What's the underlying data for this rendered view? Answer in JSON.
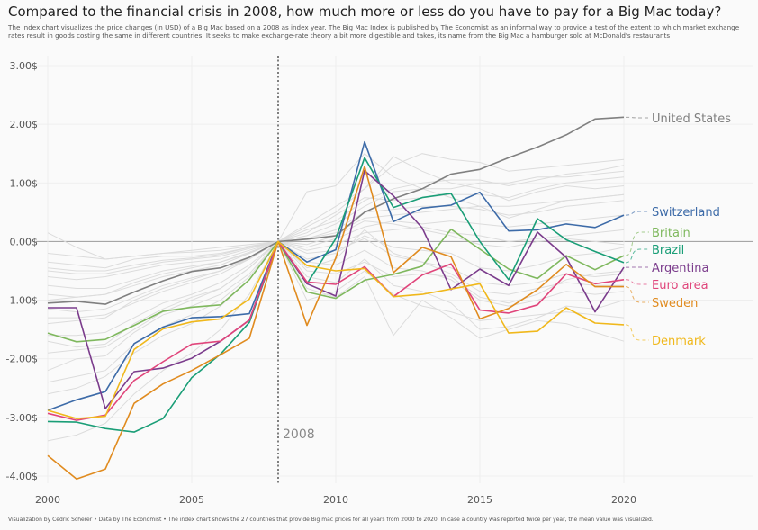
{
  "chart_data": {
    "type": "line",
    "title": "Compared to the financial crisis in 2008, how much more or less do you have to pay for a Big Mac today?",
    "subtitle": "The index chart visualizes the price changes (in USD) of a Big Mac based on a 2008 as index year. The Big Mac Index is published by The Economist as an informal way to provide a test of the extent to which market exchange rates result in goods costing the same in different countries. It seeks to make exchange-rate theory a bit more digestible and takes, its name from the Big Mac a hamburger sold at McDonald's restaurants",
    "caption": "Visualization by Cédric Scherer  •  Data by The Economist  •  The index chart shows the 27 countries that provide Big mac prices for all years from 2000 to 2020. In case a country was reported twice per year, the mean value was visualized.",
    "annotation": "2008",
    "xlim": [
      2000,
      2020
    ],
    "ylim": [
      -4.2,
      3.0
    ],
    "x_ticks": [
      "2000",
      "2005",
      "2010",
      "2015",
      "2020"
    ],
    "y_ticks": [
      "3.00$",
      "2.00$",
      "1.00$",
      "0.00$",
      "-1.00$",
      "-2.00$",
      "-3.00$",
      "-4.00$"
    ],
    "x": [
      2000,
      2001,
      2002,
      2003,
      2004,
      2005,
      2006,
      2007,
      2008,
      2009,
      2010,
      2011,
      2012,
      2013,
      2014,
      2015,
      2016,
      2017,
      2018,
      2019,
      2020
    ],
    "series": [
      {
        "name": "United States",
        "color": "#808080",
        "values": [
          -1.05,
          -1.02,
          -1.07,
          -0.86,
          -0.67,
          -0.51,
          -0.45,
          -0.27,
          0.0,
          0.04,
          0.1,
          0.5,
          0.73,
          0.9,
          1.15,
          1.23,
          1.43,
          1.61,
          1.82,
          2.09,
          2.12
        ]
      },
      {
        "name": "Switzerland",
        "color": "#3d6ba8",
        "values": [
          -2.88,
          -2.7,
          -2.56,
          -1.74,
          -1.46,
          -1.3,
          -1.28,
          -1.23,
          0.0,
          -0.35,
          -0.14,
          1.7,
          0.34,
          0.57,
          0.62,
          0.84,
          0.18,
          0.2,
          0.3,
          0.24,
          0.45
        ]
      },
      {
        "name": "Britain",
        "color": "#7fb85e",
        "values": [
          -1.56,
          -1.71,
          -1.67,
          -1.43,
          -1.19,
          -1.12,
          -1.08,
          -0.65,
          0.0,
          -0.86,
          -0.97,
          -0.66,
          -0.56,
          -0.42,
          0.21,
          -0.13,
          -0.47,
          -0.63,
          -0.24,
          -0.48,
          -0.24
        ]
      },
      {
        "name": "Brazil",
        "color": "#1a9e77",
        "values": [
          -3.07,
          -3.08,
          -3.19,
          -3.25,
          -3.02,
          -2.32,
          -1.92,
          -1.38,
          0.0,
          -0.72,
          0.05,
          1.43,
          0.58,
          0.75,
          0.82,
          0.0,
          -0.65,
          0.39,
          0.03,
          -0.17,
          -0.36
        ]
      },
      {
        "name": "Argentina",
        "color": "#7b3c8c",
        "values": [
          -1.13,
          -1.13,
          -2.85,
          -2.22,
          -2.16,
          -1.99,
          -1.7,
          -1.34,
          0.0,
          -0.72,
          -0.93,
          1.21,
          0.78,
          0.23,
          -0.82,
          -0.47,
          -0.75,
          0.16,
          -0.27,
          -1.2,
          -0.44
        ]
      },
      {
        "name": "Euro area",
        "color": "#e0457b",
        "values": [
          -2.93,
          -3.05,
          -2.96,
          -2.37,
          -2.05,
          -1.75,
          -1.7,
          -1.34,
          0.0,
          -0.69,
          -0.73,
          -0.43,
          -0.94,
          -0.57,
          -0.38,
          -1.17,
          -1.22,
          -1.08,
          -0.55,
          -0.72,
          -0.65
        ]
      },
      {
        "name": "Sweden",
        "color": "#e08b1f",
        "values": [
          -3.65,
          -4.05,
          -3.88,
          -2.76,
          -2.43,
          -2.2,
          -1.93,
          -1.65,
          0.0,
          -1.43,
          -0.28,
          1.28,
          -0.53,
          -0.1,
          -0.26,
          -1.32,
          -1.14,
          -0.82,
          -0.39,
          -0.77,
          -0.77
        ]
      },
      {
        "name": "Denmark",
        "color": "#f0b81c",
        "values": [
          -2.88,
          -3.02,
          -2.98,
          -1.84,
          -1.49,
          -1.37,
          -1.32,
          -0.98,
          0.0,
          -0.41,
          -0.5,
          -0.46,
          -0.94,
          -0.9,
          -0.81,
          -0.72,
          -1.56,
          -1.53,
          -1.13,
          -1.39,
          -1.42
        ]
      }
    ],
    "background_series": [
      [
        -1.0,
        -0.95,
        -0.9,
        -0.7,
        -0.55,
        -0.45,
        -0.35,
        -0.2,
        0.0,
        0.3,
        0.6,
        0.9,
        1.3,
        1.5,
        1.4,
        1.35,
        1.2,
        1.25,
        1.3,
        1.35,
        1.4
      ],
      [
        -1.4,
        -1.35,
        -1.3,
        -1.0,
        -0.8,
        -0.65,
        -0.5,
        -0.3,
        0.0,
        0.2,
        0.35,
        0.7,
        0.9,
        1.0,
        1.05,
        1.05,
        0.95,
        1.05,
        1.15,
        1.2,
        1.3
      ],
      [
        -0.35,
        -0.4,
        -0.45,
        -0.3,
        -0.25,
        -0.25,
        -0.2,
        -0.1,
        0.0,
        0.1,
        0.3,
        0.6,
        0.85,
        0.9,
        0.9,
        1.0,
        1.0,
        1.1,
        1.1,
        1.15,
        1.2
      ],
      [
        -0.5,
        -0.55,
        -0.55,
        -0.45,
        -0.35,
        -0.3,
        -0.25,
        -0.12,
        0.0,
        0.15,
        0.45,
        0.75,
        0.7,
        0.75,
        0.8,
        0.8,
        0.75,
        0.9,
        1.0,
        1.05,
        1.1
      ],
      [
        -1.7,
        -1.8,
        -1.75,
        -1.4,
        -1.15,
        -0.95,
        -0.8,
        -0.45,
        0.0,
        0.85,
        0.95,
        1.5,
        1.1,
        0.9,
        0.75,
        0.6,
        0.4,
        0.55,
        0.7,
        0.75,
        0.8
      ],
      [
        0.15,
        -0.1,
        -0.3,
        -0.25,
        -0.2,
        -0.15,
        -0.1,
        -0.05,
        0.0,
        -0.1,
        0.05,
        0.25,
        0.35,
        0.3,
        0.35,
        0.3,
        0.25,
        0.3,
        0.35,
        0.4,
        0.45
      ],
      [
        -0.6,
        -0.65,
        -0.6,
        -0.5,
        -0.4,
        -0.35,
        -0.3,
        -0.15,
        0.0,
        -0.15,
        -0.05,
        0.15,
        0.2,
        0.25,
        0.15,
        0.1,
        0.0,
        0.05,
        0.1,
        0.15,
        0.2
      ],
      [
        -0.9,
        -0.95,
        -0.9,
        -0.75,
        -0.6,
        -0.5,
        -0.4,
        -0.2,
        0.0,
        -0.3,
        -0.2,
        0.1,
        -0.1,
        -0.15,
        -0.2,
        -0.45,
        -0.5,
        -0.4,
        -0.25,
        -0.2,
        -0.1
      ],
      [
        -1.3,
        -1.3,
        -1.25,
        -1.05,
        -0.85,
        -0.7,
        -0.55,
        -0.3,
        0.0,
        -0.5,
        -0.55,
        -0.35,
        -0.6,
        -0.55,
        -0.6,
        -0.95,
        -1.05,
        -0.9,
        -0.65,
        -0.55,
        -0.5
      ],
      [
        -2.2,
        -2.0,
        -1.95,
        -1.55,
        -1.25,
        -1.1,
        -0.9,
        -0.55,
        0.0,
        -0.6,
        -0.7,
        -0.3,
        -0.75,
        -0.85,
        -1.05,
        -1.5,
        -1.45,
        -1.3,
        -1.1,
        -1.15,
        -1.0
      ],
      [
        -2.6,
        -2.5,
        -2.3,
        -1.9,
        -1.6,
        -1.4,
        -1.1,
        -0.65,
        0.0,
        -0.8,
        -0.95,
        -0.6,
        -1.6,
        -1.0,
        -1.3,
        -1.65,
        -1.5,
        -1.35,
        -1.4,
        -1.55,
        -1.7
      ],
      [
        -3.4,
        -3.3,
        -3.1,
        -2.6,
        -2.2,
        -1.9,
        -1.5,
        -0.9,
        0.0,
        -1.0,
        -0.85,
        -0.5,
        -0.9,
        -1.1,
        -1.2,
        -1.35,
        -1.3,
        -1.25,
        -1.2,
        -1.25,
        -1.3
      ],
      [
        -0.2,
        -0.25,
        -0.3,
        -0.25,
        -0.2,
        -0.18,
        -0.15,
        -0.08,
        0.0,
        0.05,
        0.15,
        0.4,
        0.45,
        0.5,
        0.55,
        0.6,
        0.6,
        0.65,
        0.7,
        0.75,
        0.8
      ],
      [
        -0.75,
        -0.8,
        -0.8,
        -0.65,
        -0.5,
        -0.42,
        -0.35,
        -0.18,
        0.0,
        -0.05,
        0.1,
        0.35,
        0.3,
        0.2,
        0.1,
        -0.05,
        -0.1,
        0.0,
        0.05,
        0.0,
        -0.05
      ],
      [
        -1.15,
        -1.2,
        -1.15,
        -0.95,
        -0.75,
        -0.62,
        -0.5,
        -0.28,
        0.0,
        -0.2,
        -0.15,
        0.05,
        -0.25,
        -0.35,
        -0.45,
        -0.7,
        -0.75,
        -0.7,
        -0.55,
        -0.6,
        -0.55
      ],
      [
        -1.9,
        -1.85,
        -1.8,
        -1.5,
        -1.2,
        -1.0,
        -0.8,
        -0.45,
        0.0,
        0.25,
        0.5,
        0.9,
        1.45,
        1.2,
        1.0,
        0.9,
        0.7,
        0.85,
        0.95,
        0.9,
        0.95
      ],
      [
        -0.45,
        -0.5,
        -0.5,
        -0.4,
        -0.32,
        -0.28,
        -0.22,
        -0.1,
        0.0,
        0.05,
        0.2,
        0.5,
        0.55,
        0.6,
        0.6,
        0.55,
        0.45,
        0.5,
        0.6,
        0.65,
        0.7
      ],
      [
        -1.6,
        -1.6,
        -1.55,
        -1.3,
        -1.05,
        -0.9,
        -0.7,
        -0.4,
        0.0,
        -0.35,
        -0.4,
        -0.15,
        -0.45,
        -0.5,
        -0.65,
        -1.0,
        -1.1,
        -1.0,
        -0.85,
        -0.9,
        -0.85
      ],
      [
        -2.4,
        -2.3,
        -2.2,
        -1.75,
        -1.45,
        -1.25,
        -1.0,
        -0.6,
        0.0,
        -0.45,
        -0.3,
        0.2,
        -0.2,
        -0.35,
        -0.55,
        -0.85,
        -0.9,
        -0.8,
        -0.7,
        -0.75,
        -0.75
      ]
    ]
  }
}
